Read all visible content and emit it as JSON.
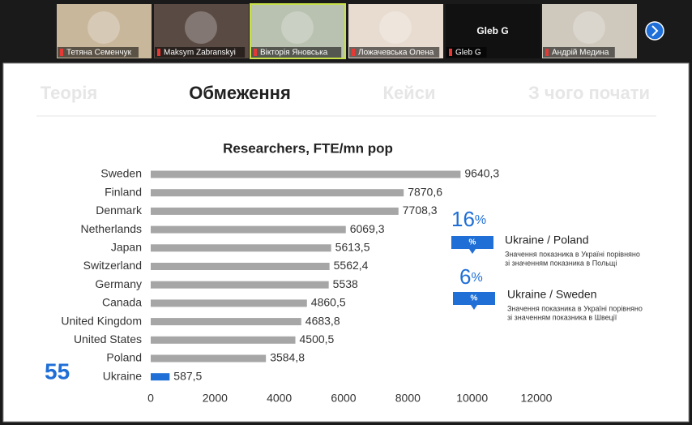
{
  "participants": [
    {
      "name": "Тетяна Семенчук",
      "bg": "#c9b79c"
    },
    {
      "name": "Maksym Zabranskyi",
      "bg": "#5a4a44"
    },
    {
      "name": "Вікторія Яновська",
      "bg": "#b9c2b0"
    },
    {
      "name": "Ложачевська Олена",
      "bg": "#e8dcd0"
    },
    {
      "name": "Gleb G",
      "bg": "#111111",
      "display": "Gleb G"
    },
    {
      "name": "Андрій Медина",
      "bg": "#cfc8bd"
    }
  ],
  "tabs": [
    "Теорія",
    "Обмеження",
    "Кейси",
    "З чого почати"
  ],
  "chart_data": {
    "type": "bar",
    "orientation": "horizontal",
    "title": "Researchers, FTE/mn pop",
    "categories": [
      "Sweden",
      "Finland",
      "Denmark",
      "Netherlands",
      "Japan",
      "Switzerland",
      "Germany",
      "Canada",
      "United Kingdom",
      "United States",
      "Poland",
      "Ukraine"
    ],
    "values": [
      9640.3,
      7870.6,
      7708.3,
      6069.3,
      5613.5,
      5562.4,
      5538,
      4860.5,
      4683.8,
      4500.5,
      3584.8,
      587.5
    ],
    "value_labels": [
      "9640,3",
      "7870,6",
      "7708,3",
      "6069,3",
      "5613,5",
      "5562,4",
      "5538",
      "4860,5",
      "4683,8",
      "4500,5",
      "3584,8",
      "587,5"
    ],
    "colors": [
      "#a6a6a6",
      "#a6a6a6",
      "#a6a6a6",
      "#a6a6a6",
      "#a6a6a6",
      "#a6a6a6",
      "#a6a6a6",
      "#a6a6a6",
      "#a6a6a6",
      "#a6a6a6",
      "#a6a6a6",
      "#1f6fd6"
    ],
    "xlim": [
      0,
      12000
    ],
    "xticks": [
      0,
      2000,
      4000,
      6000,
      8000,
      10000,
      12000
    ]
  },
  "rank": "55",
  "comparisons": [
    {
      "value": "16",
      "unit": "%",
      "badge": "%",
      "title": "Ukraine / Poland",
      "lines": [
        "Значення показника в Україні порівняно",
        "зі значенням показника в Польщі"
      ]
    },
    {
      "value": "6",
      "unit": "%",
      "badge": "%",
      "title": "Ukraine / Sweden",
      "lines": [
        "Значення показника в Україні порівняно",
        "зі значенням показника в Швеції"
      ]
    }
  ]
}
